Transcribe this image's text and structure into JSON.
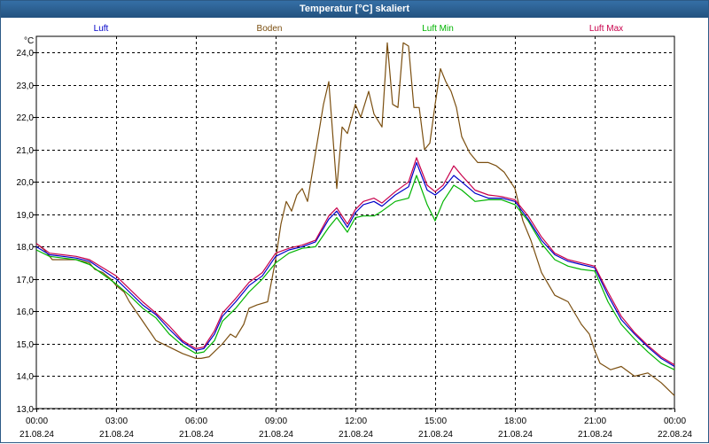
{
  "window": {
    "title": "Temperatur [°C] skaliert"
  },
  "colors": {
    "luft": "#0000c8",
    "boden": "#7b4f10",
    "luft_min": "#00b400",
    "luft_max": "#c8004b"
  },
  "chart_data": {
    "type": "line",
    "title": "Temperatur [°C] skaliert",
    "ylabel": "°C",
    "xlabel": "",
    "ylim": [
      13.0,
      24.5
    ],
    "xlim": [
      0,
      24
    ],
    "grid": true,
    "legend_position": "top",
    "yticks": [
      13.0,
      14.0,
      15.0,
      16.0,
      17.0,
      18.0,
      19.0,
      20.0,
      21.0,
      22.0,
      23.0,
      24.0
    ],
    "ytick_labels": [
      "13,0",
      "14,0",
      "15,0",
      "16,0",
      "17,0",
      "18,0",
      "19,0",
      "20,0",
      "21,0",
      "22,0",
      "23,0",
      "24,0"
    ],
    "xticks": [
      {
        "h": 0,
        "time": "00:00",
        "date": "21.08.24"
      },
      {
        "h": 3,
        "time": "03:00",
        "date": "21.08.24"
      },
      {
        "h": 6,
        "time": "06:00",
        "date": "21.08.24"
      },
      {
        "h": 9,
        "time": "09:00",
        "date": "21.08.24"
      },
      {
        "h": 12,
        "time": "12:00",
        "date": "21.08.24"
      },
      {
        "h": 15,
        "time": "15:00",
        "date": "21.08.24"
      },
      {
        "h": 18,
        "time": "18:00",
        "date": "21.08.24"
      },
      {
        "h": 21,
        "time": "21:00",
        "date": "21.08.24"
      },
      {
        "h": 24,
        "time": "00:00",
        "date": "22.08.24"
      }
    ],
    "series": [
      {
        "name": "Boden",
        "color_key": "boden",
        "x": [
          0,
          0.3,
          0.6,
          1.0,
          1.5,
          2.0,
          2.2,
          2.5,
          2.8,
          3.0,
          3.3,
          3.5,
          4.0,
          4.5,
          5.0,
          5.5,
          6.0,
          6.2,
          6.5,
          7.0,
          7.3,
          7.5,
          7.8,
          8.0,
          8.3,
          8.7,
          9.0,
          9.2,
          9.4,
          9.6,
          9.8,
          10.0,
          10.2,
          10.5,
          10.8,
          11.0,
          11.3,
          11.5,
          11.7,
          12.0,
          12.2,
          12.5,
          12.7,
          13.0,
          13.2,
          13.4,
          13.6,
          13.8,
          14.0,
          14.2,
          14.4,
          14.6,
          14.8,
          15.0,
          15.2,
          15.4,
          15.6,
          15.8,
          16.0,
          16.3,
          16.6,
          17.0,
          17.3,
          17.6,
          18.0,
          18.3,
          18.6,
          19.0,
          19.5,
          20.0,
          20.5,
          20.8,
          21.0,
          21.2,
          21.4,
          21.6,
          22.0,
          22.5,
          23.0,
          23.5,
          24.0
        ],
        "y": [
          18.1,
          17.9,
          17.6,
          17.6,
          17.6,
          17.5,
          17.3,
          17.2,
          17.0,
          16.8,
          16.6,
          16.3,
          15.7,
          15.1,
          14.9,
          14.7,
          14.55,
          14.55,
          14.6,
          15.0,
          15.3,
          15.2,
          15.6,
          16.1,
          16.2,
          16.3,
          17.6,
          18.7,
          19.4,
          19.1,
          19.6,
          19.8,
          19.4,
          20.9,
          22.4,
          23.1,
          19.8,
          21.7,
          21.5,
          22.4,
          22.0,
          22.8,
          22.1,
          21.7,
          24.3,
          22.4,
          22.3,
          24.3,
          24.2,
          22.3,
          22.3,
          21.0,
          21.2,
          22.4,
          23.5,
          23.1,
          22.8,
          22.3,
          21.4,
          20.9,
          20.6,
          20.6,
          20.5,
          20.3,
          19.8,
          18.8,
          18.2,
          17.2,
          16.5,
          16.3,
          15.6,
          15.3,
          14.8,
          14.4,
          14.3,
          14.2,
          14.3,
          14.0,
          14.1,
          13.8,
          13.4
        ]
      },
      {
        "name": "Luft Min",
        "color_key": "luft_min",
        "x": [
          0,
          0.5,
          1.0,
          1.5,
          2.0,
          3.0,
          3.5,
          4.0,
          4.5,
          5.0,
          5.5,
          6.0,
          6.3,
          6.7,
          7.0,
          7.5,
          8.0,
          8.5,
          9.0,
          9.5,
          10.0,
          10.5,
          11.0,
          11.3,
          11.7,
          12.0,
          12.3,
          12.7,
          13.0,
          13.5,
          14.0,
          14.3,
          14.7,
          15.0,
          15.3,
          15.7,
          16.0,
          16.5,
          17.0,
          17.5,
          18.0,
          18.5,
          19.0,
          19.5,
          20.0,
          20.5,
          21.0,
          21.5,
          22.0,
          22.5,
          23.0,
          23.5,
          24.0
        ],
        "y": [
          17.9,
          17.7,
          17.65,
          17.6,
          17.45,
          16.85,
          16.5,
          16.1,
          15.8,
          15.3,
          14.95,
          14.7,
          14.75,
          15.1,
          15.7,
          16.1,
          16.6,
          17.0,
          17.5,
          17.8,
          17.95,
          18.0,
          18.6,
          18.9,
          18.45,
          18.9,
          18.95,
          18.95,
          19.1,
          19.4,
          19.5,
          20.2,
          19.3,
          18.8,
          19.4,
          19.9,
          19.75,
          19.4,
          19.45,
          19.45,
          19.3,
          18.8,
          18.1,
          17.6,
          17.4,
          17.3,
          17.25,
          16.3,
          15.6,
          15.15,
          14.75,
          14.4,
          14.2
        ]
      },
      {
        "name": "Luft",
        "color_key": "luft",
        "x": [
          0,
          0.5,
          1.0,
          1.5,
          2.0,
          3.0,
          3.5,
          4.0,
          4.5,
          5.0,
          5.5,
          6.0,
          6.3,
          6.7,
          7.0,
          7.5,
          8.0,
          8.5,
          9.0,
          9.5,
          10.0,
          10.5,
          11.0,
          11.3,
          11.7,
          12.0,
          12.3,
          12.7,
          13.0,
          13.5,
          14.0,
          14.3,
          14.7,
          15.0,
          15.3,
          15.7,
          16.0,
          16.5,
          17.0,
          17.5,
          18.0,
          18.5,
          19.0,
          19.5,
          20.0,
          20.5,
          21.0,
          21.5,
          22.0,
          22.5,
          23.0,
          23.5,
          24.0
        ],
        "y": [
          18.0,
          17.75,
          17.7,
          17.65,
          17.55,
          17.0,
          16.6,
          16.2,
          15.9,
          15.45,
          15.05,
          14.8,
          14.85,
          15.3,
          15.85,
          16.3,
          16.8,
          17.1,
          17.7,
          17.9,
          18.0,
          18.15,
          18.85,
          19.1,
          18.6,
          19.05,
          19.3,
          19.4,
          19.25,
          19.6,
          19.85,
          20.6,
          19.75,
          19.6,
          19.8,
          20.2,
          20.0,
          19.65,
          19.5,
          19.5,
          19.4,
          18.85,
          18.2,
          17.75,
          17.55,
          17.45,
          17.35,
          16.5,
          15.75,
          15.3,
          14.9,
          14.55,
          14.3
        ]
      },
      {
        "name": "Luft Max",
        "color_key": "luft_max",
        "x": [
          0,
          0.5,
          1.0,
          1.5,
          2.0,
          3.0,
          3.5,
          4.0,
          4.5,
          5.0,
          5.5,
          6.0,
          6.3,
          6.7,
          7.0,
          7.5,
          8.0,
          8.5,
          9.0,
          9.5,
          10.0,
          10.5,
          11.0,
          11.3,
          11.7,
          12.0,
          12.3,
          12.7,
          13.0,
          13.5,
          14.0,
          14.3,
          14.7,
          15.0,
          15.3,
          15.7,
          16.0,
          16.5,
          17.0,
          17.5,
          18.0,
          18.5,
          19.0,
          19.5,
          20.0,
          20.5,
          21.0,
          21.5,
          22.0,
          22.5,
          23.0,
          23.5,
          24.0
        ],
        "y": [
          18.1,
          17.8,
          17.75,
          17.7,
          17.6,
          17.1,
          16.7,
          16.3,
          15.95,
          15.55,
          15.1,
          14.85,
          14.9,
          15.4,
          15.95,
          16.4,
          16.9,
          17.2,
          17.8,
          17.95,
          18.05,
          18.2,
          18.95,
          19.2,
          18.7,
          19.15,
          19.4,
          19.5,
          19.35,
          19.7,
          20.0,
          20.75,
          19.9,
          19.7,
          19.9,
          20.5,
          20.2,
          19.75,
          19.6,
          19.55,
          19.45,
          18.95,
          18.3,
          17.8,
          17.6,
          17.5,
          17.4,
          16.6,
          15.85,
          15.35,
          14.95,
          14.6,
          14.35
        ]
      }
    ],
    "legend": [
      {
        "label": "Luft",
        "color_key": "luft"
      },
      {
        "label": "Boden",
        "color_key": "boden"
      },
      {
        "label": "Luft Min",
        "color_key": "luft_min"
      },
      {
        "label": "Luft Max",
        "color_key": "luft_max"
      }
    ]
  }
}
